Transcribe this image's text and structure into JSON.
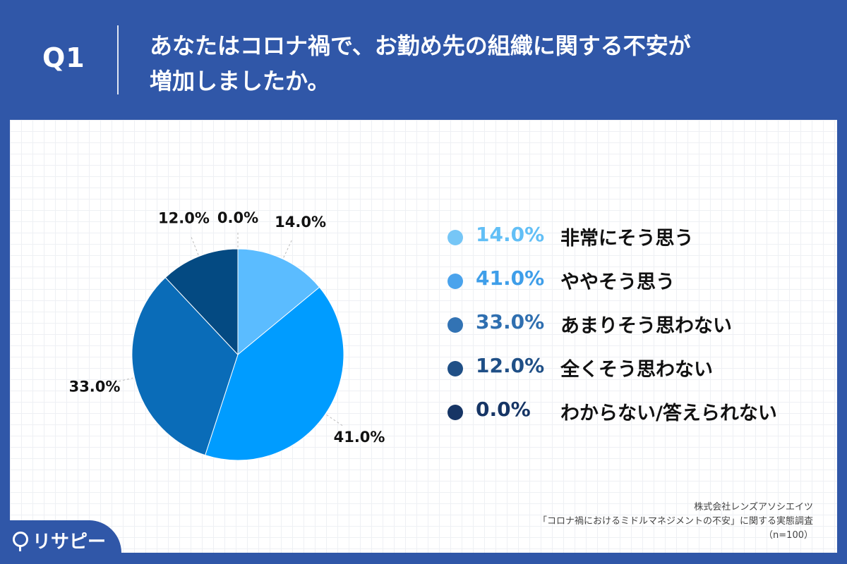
{
  "header": {
    "question_id": "Q1",
    "title_line1": "あなたはコロナ禍で、お勤め先の組織に関する不安が",
    "title_line2": "増加しましたか。"
  },
  "chart_data": {
    "type": "pie",
    "slices": [
      {
        "label": "非常にそう思う",
        "value": 14.0,
        "display": "14.0%",
        "color": "#5bbcff"
      },
      {
        "label": "ややそう思う",
        "value": 41.0,
        "display": "41.0%",
        "color": "#009cff"
      },
      {
        "label": "あまりそう思わない",
        "value": 33.0,
        "display": "33.0%",
        "color": "#0a6cb8"
      },
      {
        "label": "全くそう思わない",
        "value": 12.0,
        "display": "12.0%",
        "color": "#044a82"
      },
      {
        "label": "わからない/答えられない",
        "value": 0.0,
        "display": "0.0%",
        "color": "#0d2a63"
      }
    ]
  },
  "legend": {
    "items": [
      {
        "pct": "14.0%",
        "text": "非常にそう思う",
        "pct_color": "#62bff6",
        "dot_color": "#76c6f6"
      },
      {
        "pct": "41.0%",
        "text": "ややそう思う",
        "pct_color": "#3e9ee9",
        "dot_color": "#4aa3ec"
      },
      {
        "pct": "33.0%",
        "text": "あまりそう思わない",
        "pct_color": "#2f6fb0",
        "dot_color": "#3273b4"
      },
      {
        "pct": "12.0%",
        "text": "全くそう思わない",
        "pct_color": "#1f4f86",
        "dot_color": "#1f4f86"
      },
      {
        "pct": "0.0%",
        "text": "わからない/答えられない",
        "pct_color": "#163565",
        "dot_color": "#163565"
      }
    ]
  },
  "source": {
    "line1": "株式会社レンズアソシエイツ",
    "line2": "「コロナ禍におけるミドルマネジメントの不安」に関する実態調査",
    "line3": "（n=100）"
  },
  "brand": {
    "name": "リサピー"
  },
  "colors": {
    "background": "#3057a8",
    "panel": "#ffffff"
  }
}
